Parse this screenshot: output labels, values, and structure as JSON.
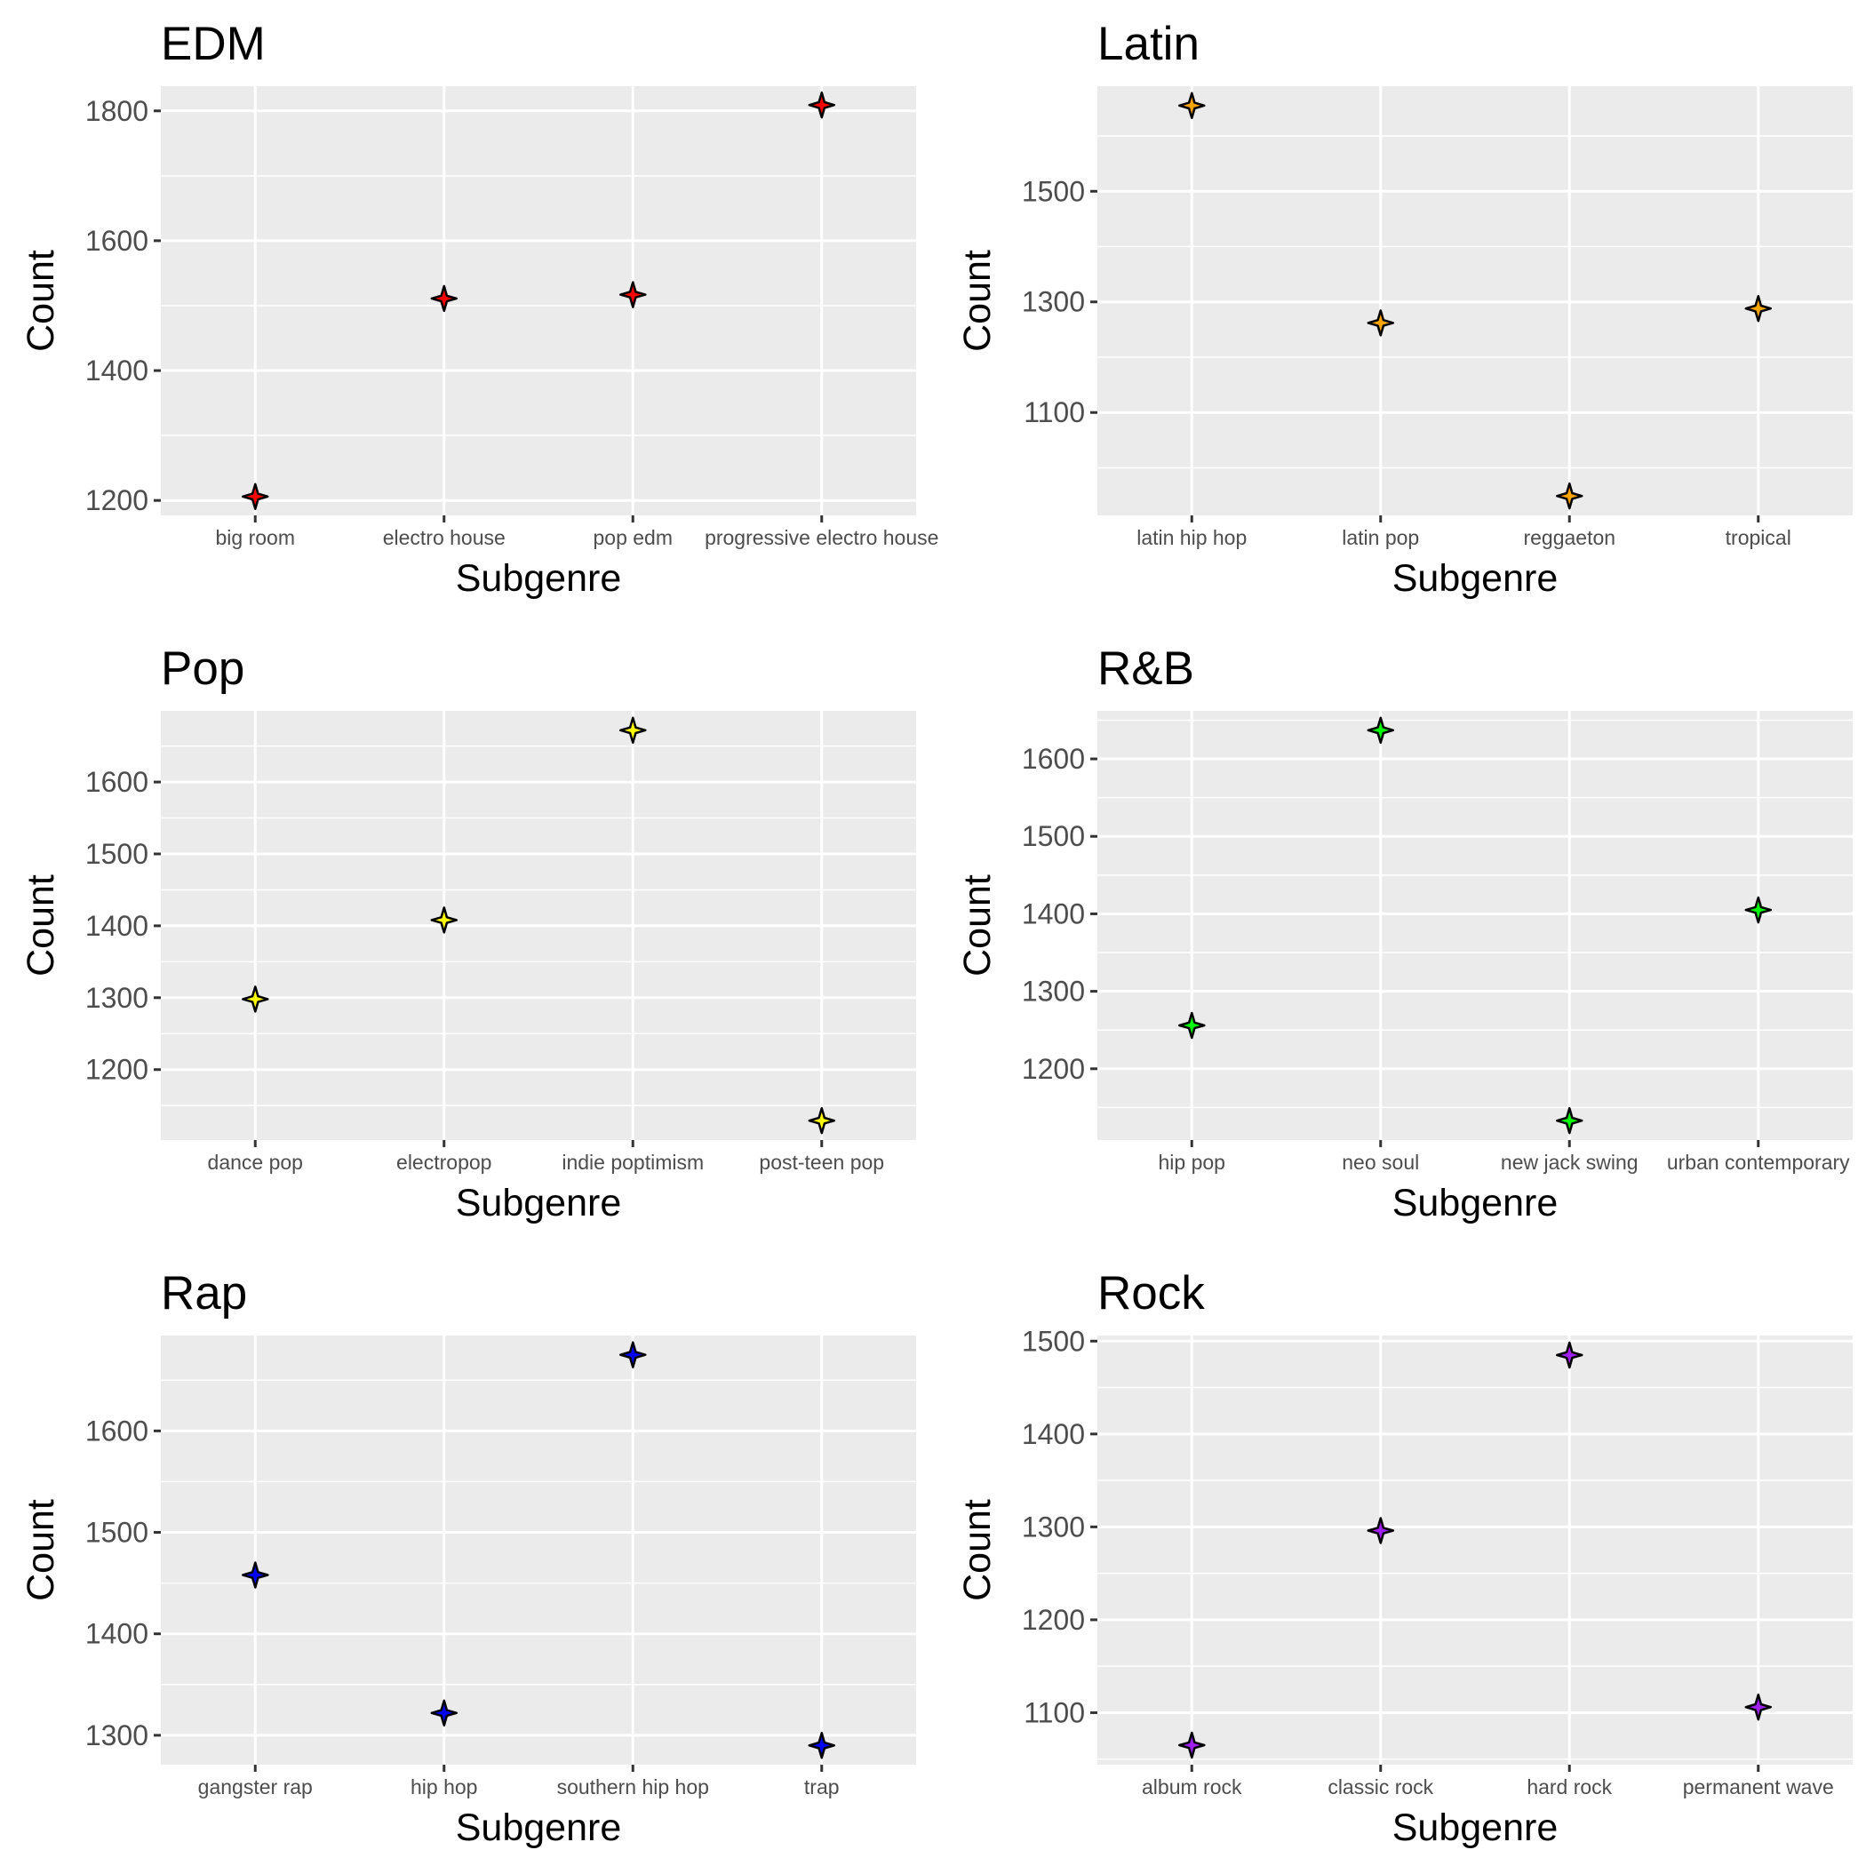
{
  "chart_data": [
    {
      "type": "scatter",
      "title": "EDM",
      "xlabel": "Subgenre",
      "ylabel": "Count",
      "categories": [
        "big room",
        "electro house",
        "pop edm",
        "progressive electro house"
      ],
      "values": [
        1206,
        1511,
        1517,
        1809
      ],
      "color": "#ff0000",
      "ylim": [
        1177,
        1838
      ],
      "yticks": [
        1200,
        1400,
        1600,
        1800
      ],
      "grid": true
    },
    {
      "type": "scatter",
      "title": "Latin",
      "xlabel": "Subgenre",
      "ylabel": "Count",
      "categories": [
        "latin hip hop",
        "latin pop",
        "reggaeton",
        "tropical"
      ],
      "values": [
        1655,
        1262,
        949,
        1288
      ],
      "color": "#ffa500",
      "ylim": [
        914,
        1690
      ],
      "yticks": [
        1100,
        1300,
        1500
      ],
      "grid": true
    },
    {
      "type": "scatter",
      "title": "Pop",
      "xlabel": "Subgenre",
      "ylabel": "Count",
      "categories": [
        "dance pop",
        "electropop",
        "indie poptimism",
        "post-teen pop"
      ],
      "values": [
        1298,
        1408,
        1672,
        1129
      ],
      "color": "#ffff00",
      "ylim": [
        1102,
        1699
      ],
      "yticks": [
        1200,
        1300,
        1400,
        1500,
        1600
      ],
      "grid": true
    },
    {
      "type": "scatter",
      "title": "R&B",
      "xlabel": "Subgenre",
      "ylabel": "Count",
      "categories": [
        "hip pop",
        "neo soul",
        "new jack swing",
        "urban contemporary"
      ],
      "values": [
        1256,
        1637,
        1133,
        1405
      ],
      "color": "#00ff00",
      "ylim": [
        1108,
        1662
      ],
      "yticks": [
        1200,
        1300,
        1400,
        1500,
        1600
      ],
      "grid": true
    },
    {
      "type": "scatter",
      "title": "Rap",
      "xlabel": "Subgenre",
      "ylabel": "Count",
      "categories": [
        "gangster rap",
        "hip hop",
        "southern hip hop",
        "trap"
      ],
      "values": [
        1458,
        1322,
        1675,
        1290
      ],
      "color": "#0000ff",
      "ylim": [
        1271,
        1694
      ],
      "yticks": [
        1300,
        1400,
        1500,
        1600
      ],
      "grid": true
    },
    {
      "type": "scatter",
      "title": "Rock",
      "xlabel": "Subgenre",
      "ylabel": "Count",
      "categories": [
        "album rock",
        "classic rock",
        "hard rock",
        "permanent wave"
      ],
      "values": [
        1065,
        1296,
        1485,
        1106
      ],
      "color": "#a020f0",
      "ylim": [
        1044,
        1506
      ],
      "yticks": [
        1100,
        1200,
        1300,
        1400,
        1500
      ],
      "grid": true
    }
  ]
}
